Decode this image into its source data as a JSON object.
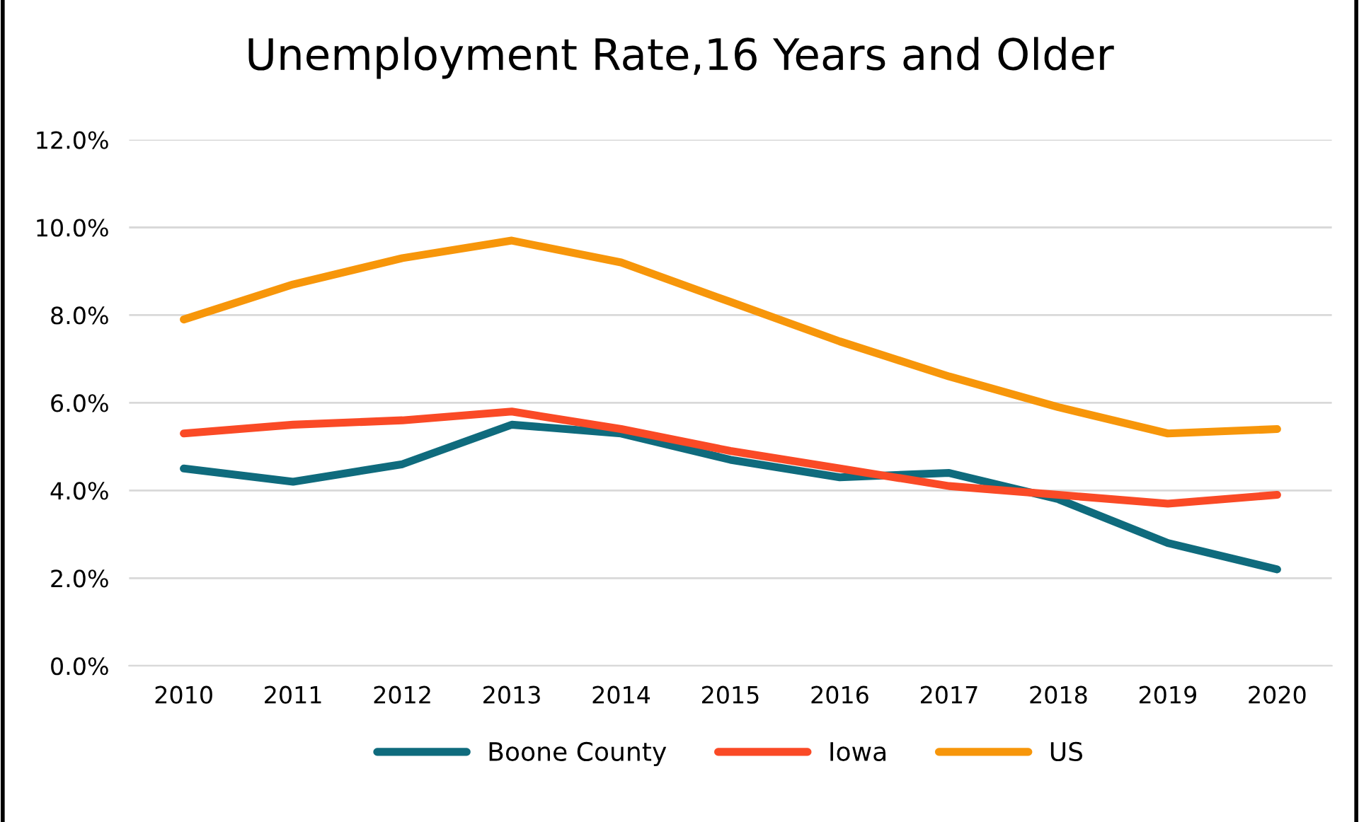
{
  "chart_data": {
    "type": "line",
    "title": "Unemployment Rate,16 Years and Older",
    "categories": [
      "2010",
      "2011",
      "2012",
      "2013",
      "2014",
      "2015",
      "2016",
      "2017",
      "2018",
      "2019",
      "2020"
    ],
    "series": [
      {
        "name": "Boone County",
        "color": "#0f6b7d",
        "values": [
          4.5,
          4.2,
          4.6,
          5.5,
          5.3,
          4.7,
          4.3,
          4.4,
          3.8,
          2.8,
          2.2
        ]
      },
      {
        "name": "Iowa",
        "color": "#fa4a26",
        "values": [
          5.3,
          5.5,
          5.6,
          5.8,
          5.4,
          4.9,
          4.5,
          4.1,
          3.9,
          3.7,
          3.9
        ]
      },
      {
        "name": "US",
        "color": "#f7960a",
        "values": [
          7.9,
          8.7,
          9.3,
          9.7,
          9.2,
          8.3,
          7.4,
          6.6,
          5.9,
          5.3,
          5.4
        ]
      }
    ],
    "ylim": [
      0,
      12
    ],
    "yticks": [
      {
        "value": 0,
        "label": "0.0%"
      },
      {
        "value": 2,
        "label": "2.0%"
      },
      {
        "value": 4,
        "label": "4.0%"
      },
      {
        "value": 6,
        "label": "6.0%"
      },
      {
        "value": 8,
        "label": "8.0%"
      },
      {
        "value": 10,
        "label": "10.0%"
      },
      {
        "value": 12,
        "label": "12.0%"
      }
    ],
    "grid": "y",
    "legend": "bottom",
    "marker": "none",
    "line_style": "solid"
  }
}
